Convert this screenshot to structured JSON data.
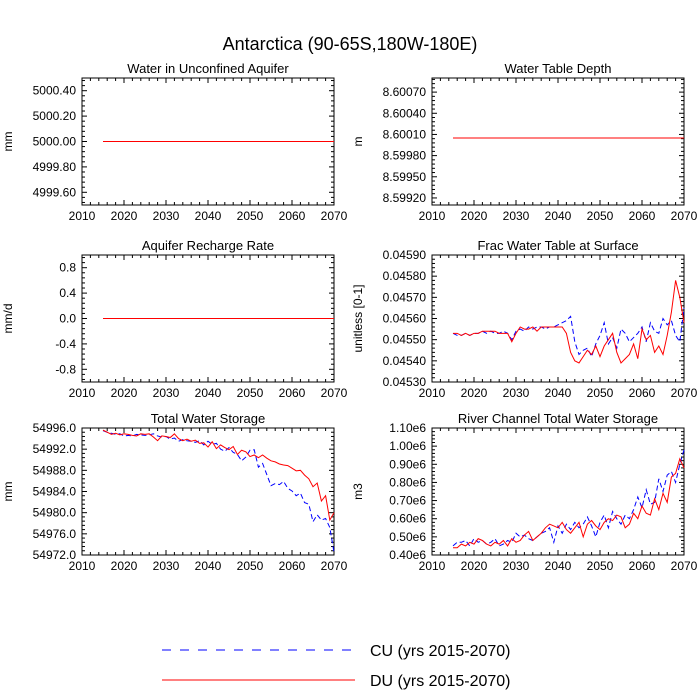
{
  "figure": {
    "title": "Antarctica (90-65S,180W-180E)"
  },
  "colors": {
    "CU": "#0000ff",
    "DU": "#ff0000"
  },
  "legend": [
    {
      "key": "CU",
      "label": "CU (yrs 2015-2070)",
      "style": "dashed"
    },
    {
      "key": "DU",
      "label": "DU (yrs 2015-2070)",
      "style": "solid"
    }
  ],
  "chart_data": [
    {
      "type": "line",
      "title": "Water in Unconfined Aquifer",
      "ylabel": "mm",
      "xlim": [
        2010,
        2070
      ],
      "xticks": [
        2010,
        2020,
        2030,
        2040,
        2050,
        2060,
        2070
      ],
      "ylim": [
        4999.5,
        5000.5
      ],
      "yticks": [
        4999.6,
        4999.8,
        5000.0,
        5000.2,
        5000.4
      ],
      "yticklabels": [
        "4999.60",
        "4999.80",
        "5000.00",
        "5000.20",
        "5000.40"
      ],
      "series": [
        {
          "name": "CU",
          "x": [
            2015,
            2070
          ],
          "y": [
            5000.0,
            5000.0
          ]
        },
        {
          "name": "DU",
          "x": [
            2015,
            2070
          ],
          "y": [
            5000.0,
            5000.0
          ]
        }
      ]
    },
    {
      "type": "line",
      "title": "Water Table Depth",
      "ylabel": "m",
      "xlim": [
        2010,
        2070
      ],
      "xticks": [
        2010,
        2020,
        2030,
        2040,
        2050,
        2060,
        2070
      ],
      "ylim": [
        8.5991,
        8.6009
      ],
      "yticks": [
        8.5992,
        8.5995,
        8.5998,
        8.6001,
        8.6004,
        8.6007
      ],
      "yticklabels": [
        "8.59920",
        "8.59950",
        "8.59980",
        "8.60010",
        "8.60040",
        "8.60070"
      ],
      "series": [
        {
          "name": "CU",
          "x": [
            2015,
            2070
          ],
          "y": [
            8.60005,
            8.60005
          ]
        },
        {
          "name": "DU",
          "x": [
            2015,
            2070
          ],
          "y": [
            8.60005,
            8.60005
          ]
        }
      ]
    },
    {
      "type": "line",
      "title": "Aquifer Recharge Rate",
      "ylabel": "mm/d",
      "xlim": [
        2010,
        2070
      ],
      "xticks": [
        2010,
        2020,
        2030,
        2040,
        2050,
        2060,
        2070
      ],
      "ylim": [
        -1,
        1
      ],
      "yticks": [
        -0.8,
        -0.4,
        0.0,
        0.4,
        0.8
      ],
      "yticklabels": [
        "-0.8",
        "-0.4",
        "0.0",
        "0.4",
        "0.8"
      ],
      "series": [
        {
          "name": "CU",
          "x": [
            2015,
            2070
          ],
          "y": [
            0,
            0
          ]
        },
        {
          "name": "DU",
          "x": [
            2015,
            2070
          ],
          "y": [
            0,
            0
          ]
        }
      ]
    },
    {
      "type": "line",
      "title": "Frac Water Table at Surface",
      "ylabel": "unitless [0-1]",
      "xlim": [
        2010,
        2070
      ],
      "xticks": [
        2010,
        2020,
        2030,
        2040,
        2050,
        2060,
        2070
      ],
      "ylim": [
        0.0453,
        0.0459
      ],
      "yticks": [
        0.0453,
        0.0454,
        0.0455,
        0.0456,
        0.0457,
        0.0458,
        0.0459
      ],
      "yticklabels": [
        "0.04530",
        "0.04540",
        "0.04550",
        "0.04560",
        "0.04570",
        "0.04580",
        "0.04590"
      ],
      "x_start": 2015,
      "series": [
        {
          "name": "CU",
          "y": [
            0.04553,
            0.04552,
            0.04552,
            0.04553,
            0.04552,
            0.04553,
            0.04553,
            0.04554,
            0.04553,
            0.04554,
            0.04553,
            0.04553,
            0.04554,
            0.04553,
            0.0455,
            0.04554,
            0.04555,
            0.04554,
            0.04556,
            0.04555,
            0.04556,
            0.04556,
            0.04555,
            0.04556,
            0.04556,
            0.04557,
            0.04558,
            0.04559,
            0.04561,
            0.04549,
            0.04543,
            0.04545,
            0.04546,
            0.04542,
            0.04548,
            0.04552,
            0.04558,
            0.04548,
            0.04551,
            0.04546,
            0.04555,
            0.04553,
            0.04549,
            0.04551,
            0.04553,
            0.04556,
            0.04549,
            0.04558,
            0.04554,
            0.04553,
            0.0456,
            0.04557,
            0.04559,
            0.04552,
            0.04549,
            0.04565
          ]
        },
        {
          "name": "DU",
          "y": [
            0.04553,
            0.04553,
            0.04552,
            0.04553,
            0.04552,
            0.04553,
            0.04553,
            0.04554,
            0.04554,
            0.04554,
            0.04554,
            0.04553,
            0.04553,
            0.04553,
            0.04549,
            0.04553,
            0.04556,
            0.04555,
            0.04555,
            0.04556,
            0.04554,
            0.04556,
            0.04556,
            0.04556,
            0.04556,
            0.04556,
            0.04556,
            0.04553,
            0.04544,
            0.0454,
            0.04539,
            0.04542,
            0.04545,
            0.04543,
            0.04547,
            0.04542,
            0.04547,
            0.0455,
            0.04553,
            0.04544,
            0.04539,
            0.04541,
            0.04543,
            0.04548,
            0.04541,
            0.04555,
            0.0455,
            0.04552,
            0.04544,
            0.04547,
            0.04543,
            0.04552,
            0.04563,
            0.04578,
            0.0457,
            0.04558
          ]
        }
      ]
    },
    {
      "type": "line",
      "title": "Total Water Storage",
      "ylabel": "mm",
      "xlim": [
        2010,
        2070
      ],
      "xticks": [
        2010,
        2020,
        2030,
        2040,
        2050,
        2060,
        2070
      ],
      "ylim": [
        54972.0,
        54996.0
      ],
      "yticks": [
        54972,
        54976,
        54980,
        54984,
        54988,
        54992,
        54996
      ],
      "yticklabels": [
        "54972.0",
        "54976.0",
        "54980.0",
        "54984.0",
        "54988.0",
        "54992.0",
        "54996.0"
      ],
      "x_start": 2015,
      "series": [
        {
          "name": "CU",
          "y": [
            54995.5,
            54995.2,
            54995.0,
            54994.8,
            54994.9,
            54994.5,
            54994.6,
            54994.5,
            54994.8,
            54994.7,
            54994.6,
            54994.7,
            54994.9,
            54994.5,
            54994.3,
            54994.4,
            54993.9,
            54994.1,
            54993.5,
            54993.8,
            54993.6,
            54993.5,
            54993.3,
            54993.6,
            54992.8,
            54993.5,
            54992.9,
            54993.1,
            54992.0,
            54991.6,
            54992.3,
            54991.4,
            54991.0,
            54989.8,
            54990.5,
            54991.8,
            54991.9,
            54988.6,
            54989.3,
            54987.2,
            54985.1,
            54985.5,
            54985.3,
            54985.9,
            54984.6,
            54984.1,
            54983.2,
            54983.7,
            54981.9,
            54981.6,
            54978.3,
            54979.6,
            54978.6,
            54978.9,
            54977.2,
            54972.5
          ]
        },
        {
          "name": "DU",
          "y": [
            54995.6,
            54995.2,
            54994.8,
            54995.0,
            54994.7,
            54994.9,
            54994.8,
            54994.6,
            54994.5,
            54994.9,
            54994.8,
            54994.9,
            54994.3,
            54993.6,
            54994.5,
            54994.4,
            54994.2,
            54994.9,
            54994.0,
            54993.6,
            54993.9,
            54993.5,
            54993.7,
            54993.1,
            54993.2,
            54992.4,
            54993.4,
            54992.1,
            54992.8,
            54992.3,
            54991.9,
            54992.5,
            54991.0,
            54991.8,
            54991.5,
            54990.6,
            54990.9,
            54990.4,
            54990.9,
            54990.3,
            54989.8,
            54989.6,
            54989.2,
            54989.0,
            54988.9,
            54988.4,
            54987.9,
            54988.0,
            54987.1,
            54986.4,
            54984.9,
            54985.6,
            54982.2,
            54983.2,
            54978.6,
            54980.0
          ]
        }
      ]
    },
    {
      "type": "line",
      "title": "River Channel Total Water Storage",
      "ylabel": "m3",
      "xlim": [
        2010,
        2070
      ],
      "xticks": [
        2010,
        2020,
        2030,
        2040,
        2050,
        2060,
        2070
      ],
      "ylim": [
        0.4,
        1.1
      ],
      "yticks": [
        0.4,
        0.5,
        0.6,
        0.7,
        0.8,
        0.9,
        1.0,
        1.1
      ],
      "yticklabels": [
        "0.40e6",
        "0.50e6",
        "0.60e6",
        "0.70e6",
        "0.80e6",
        "0.90e6",
        "1.00e6",
        "1.10e6"
      ],
      "x_start": 2015,
      "series": [
        {
          "name": "CU",
          "y": [
            0.45,
            0.47,
            0.47,
            0.48,
            0.45,
            0.49,
            0.47,
            0.48,
            0.46,
            0.47,
            0.49,
            0.45,
            0.46,
            0.48,
            0.47,
            0.52,
            0.5,
            0.51,
            0.49,
            0.48,
            0.5,
            0.52,
            0.53,
            0.55,
            0.47,
            0.56,
            0.52,
            0.57,
            0.54,
            0.58,
            0.55,
            0.57,
            0.61,
            0.56,
            0.5,
            0.58,
            0.62,
            0.55,
            0.64,
            0.6,
            0.57,
            0.62,
            0.6,
            0.65,
            0.72,
            0.66,
            0.76,
            0.68,
            0.69,
            0.82,
            0.75,
            0.84,
            0.86,
            0.8,
            0.9,
            0.98
          ]
        },
        {
          "name": "DU",
          "y": [
            0.44,
            0.44,
            0.46,
            0.45,
            0.47,
            0.46,
            0.49,
            0.48,
            0.46,
            0.45,
            0.47,
            0.46,
            0.48,
            0.45,
            0.49,
            0.47,
            0.48,
            0.51,
            0.53,
            0.48,
            0.5,
            0.52,
            0.55,
            0.57,
            0.56,
            0.55,
            0.58,
            0.54,
            0.52,
            0.55,
            0.58,
            0.5,
            0.57,
            0.59,
            0.56,
            0.54,
            0.58,
            0.6,
            0.59,
            0.62,
            0.61,
            0.55,
            0.57,
            0.63,
            0.6,
            0.67,
            0.63,
            0.62,
            0.71,
            0.65,
            0.74,
            0.69,
            0.83,
            0.85,
            0.93,
            0.88
          ]
        }
      ]
    }
  ]
}
